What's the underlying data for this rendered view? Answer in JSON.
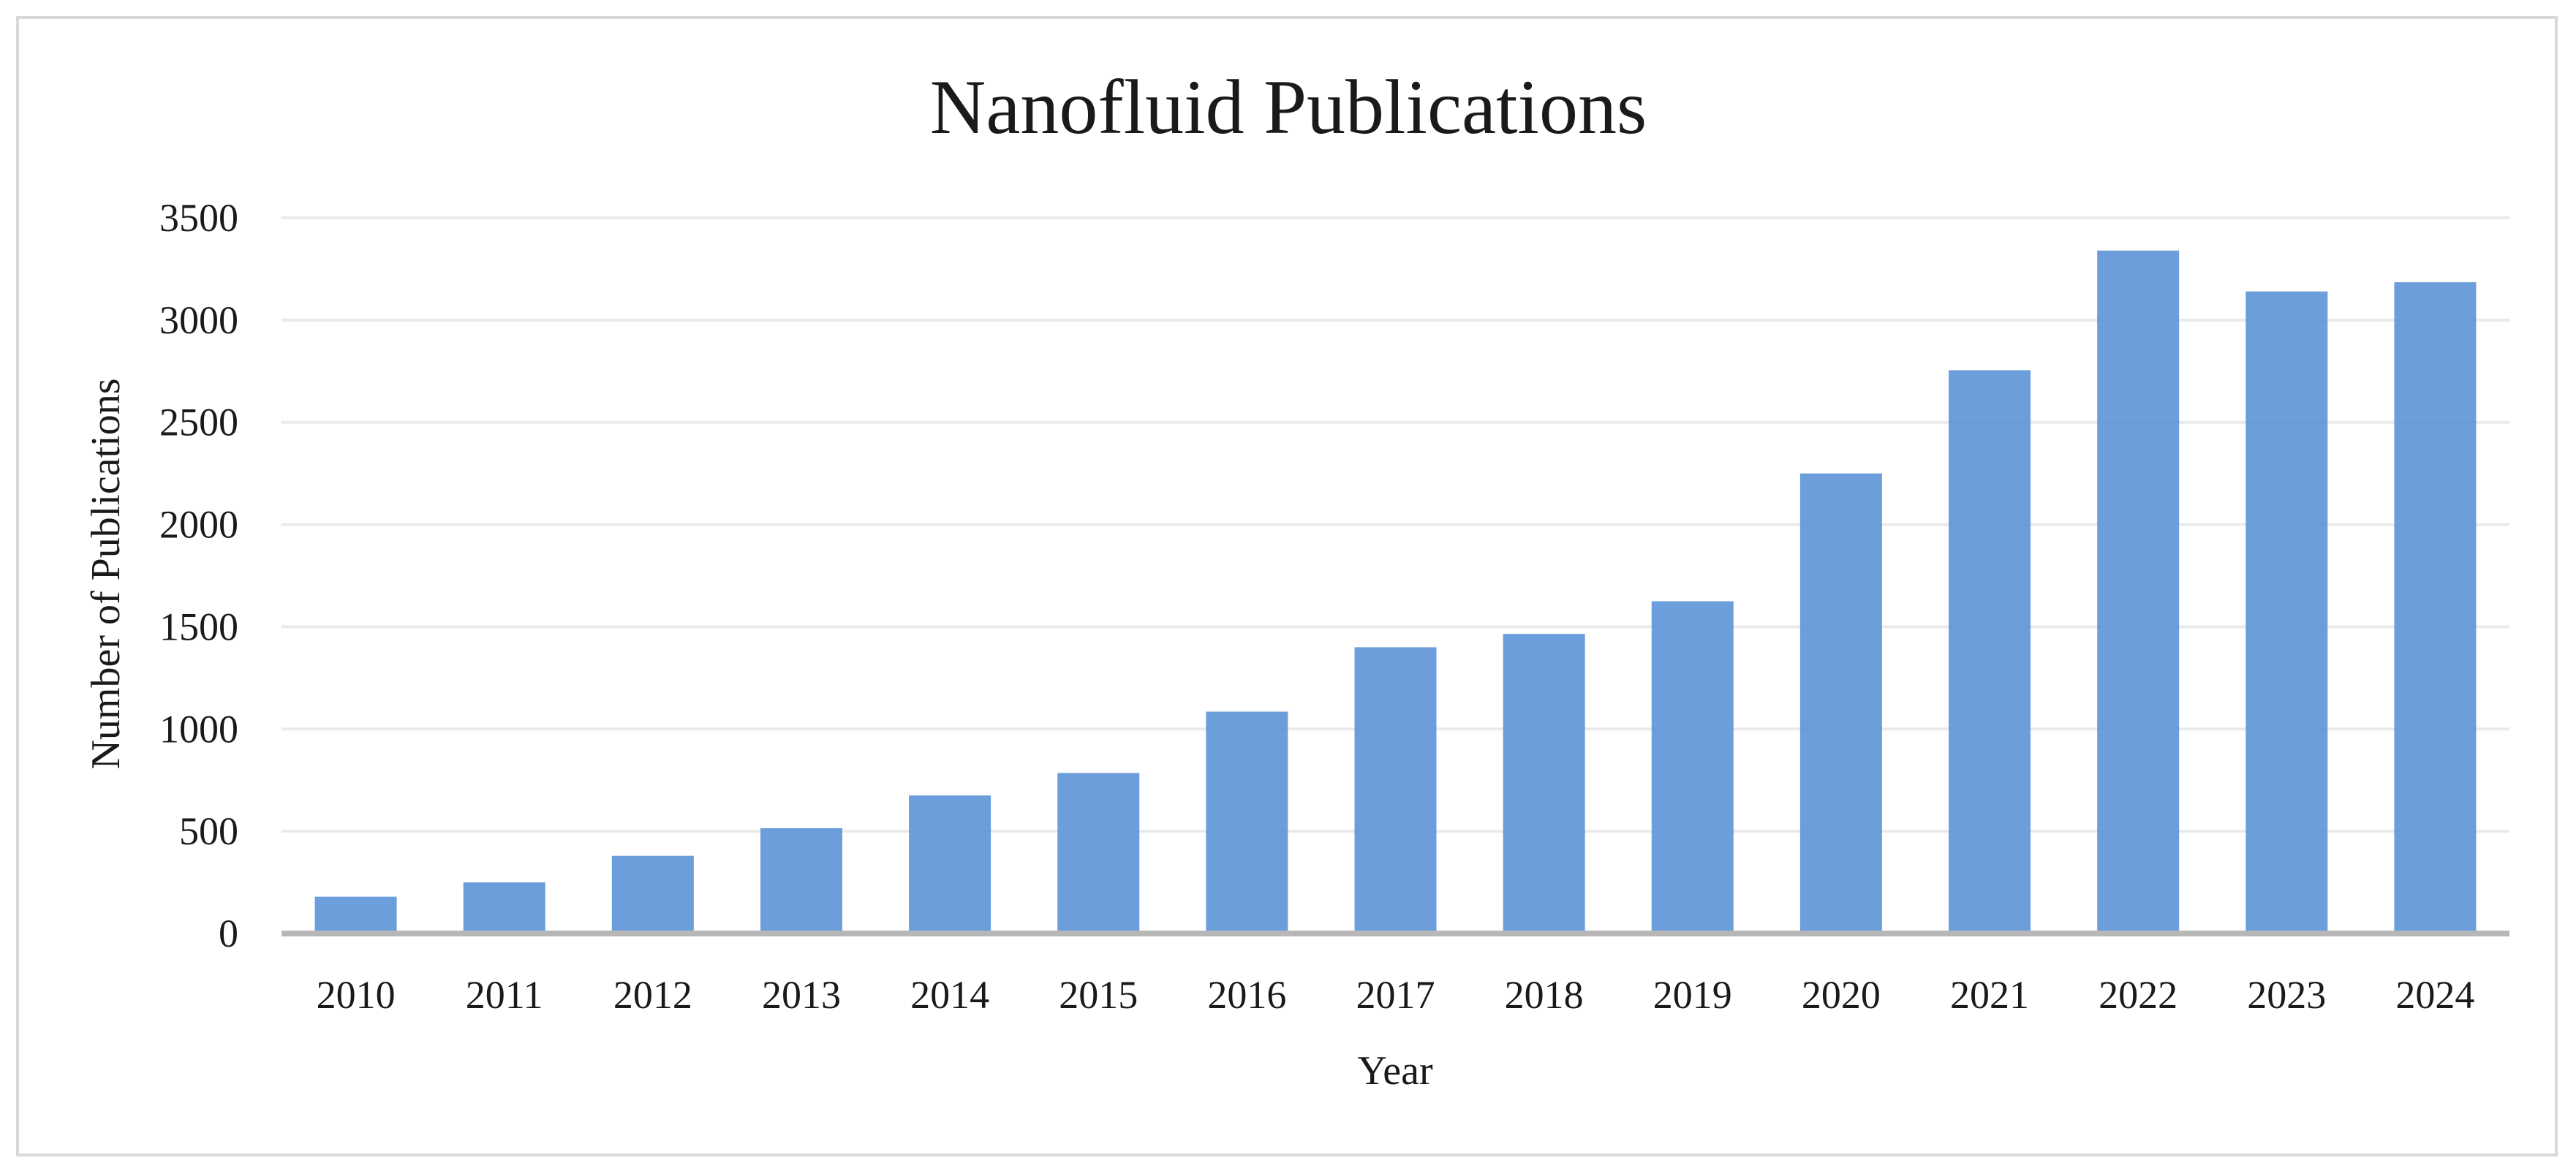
{
  "chart_data": {
    "type": "bar",
    "title": "Nanofluid Publications",
    "xlabel": "Year",
    "ylabel": "Number of Publications",
    "categories": [
      "2010",
      "2011",
      "2012",
      "2013",
      "2014",
      "2015",
      "2016",
      "2017",
      "2018",
      "2019",
      "2020",
      "2021",
      "2022",
      "2023",
      "2024"
    ],
    "values": [
      180,
      250,
      380,
      515,
      675,
      785,
      1085,
      1400,
      1465,
      1625,
      2250,
      2755,
      3340,
      3140,
      3185
    ],
    "ylim": [
      0,
      3500
    ],
    "yticks": [
      "0",
      "500",
      "1000",
      "1500",
      "2000",
      "2500",
      "3000",
      "3500"
    ],
    "grid": true,
    "legend": "none",
    "bar_color": "#5b93d6"
  }
}
